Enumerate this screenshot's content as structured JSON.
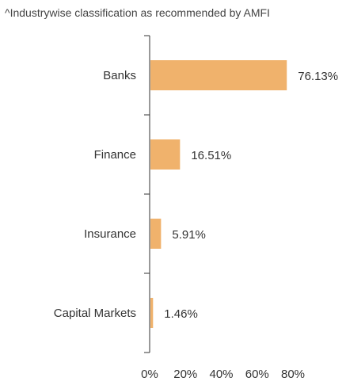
{
  "chart_data": {
    "type": "bar",
    "orientation": "horizontal",
    "title": "^Industrywise classification as recommended by AMFI",
    "categories": [
      "Banks",
      "Finance",
      "Insurance",
      "Capital Markets"
    ],
    "values": [
      76.13,
      16.51,
      5.91,
      1.46
    ],
    "data_labels": [
      "76.13%",
      "16.51%",
      "5.91%",
      "1.46%"
    ],
    "xlim": [
      0,
      80
    ],
    "x_ticks": [
      0,
      20,
      40,
      60,
      80
    ],
    "x_tick_labels": [
      "0%",
      "20%",
      "40%",
      "60%",
      "80%"
    ],
    "grid": false,
    "legend": "none",
    "bar_color": "#F0B26C",
    "axis_color": "#333333"
  }
}
